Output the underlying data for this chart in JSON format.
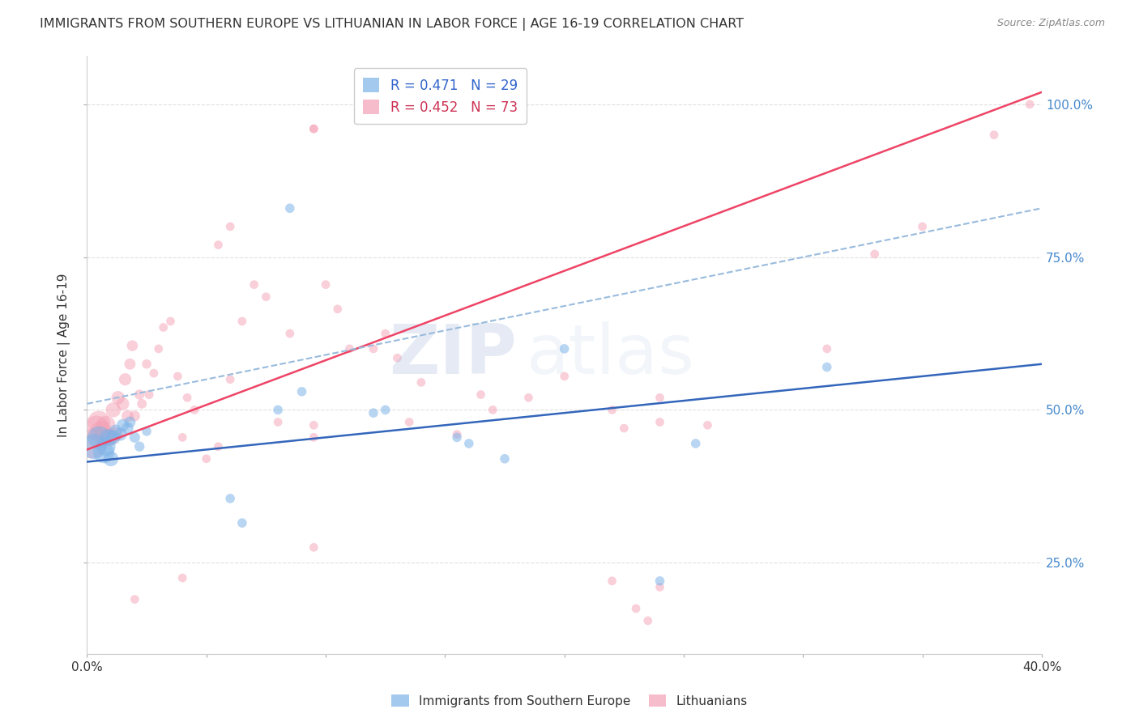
{
  "title": "IMMIGRANTS FROM SOUTHERN EUROPE VS LITHUANIAN IN LABOR FORCE | AGE 16-19 CORRELATION CHART",
  "source": "Source: ZipAtlas.com",
  "ylabel": "In Labor Force | Age 16-19",
  "xlim": [
    0.0,
    0.4
  ],
  "ylim": [
    0.1,
    1.08
  ],
  "legend_entry1": "R = 0.471   N = 29",
  "legend_entry2": "R = 0.452   N = 73",
  "watermark": "ZIPatlas",
  "blue_color": "#7EB3E8",
  "pink_color": "#F4A0B5",
  "blue_line_color": "#3366BB",
  "pink_line_color": "#EE4466",
  "dashed_line_color": "#99BBDD",
  "background_color": "#FFFFFF",
  "grid_color": "#DDDDDD",
  "blue_scatter_x": [
    0.003,
    0.005,
    0.007,
    0.008,
    0.009,
    0.01,
    0.011,
    0.012,
    0.014,
    0.015,
    0.017,
    0.018,
    0.02,
    0.022,
    0.025,
    0.06,
    0.065,
    0.08,
    0.085,
    0.09,
    0.12,
    0.125,
    0.155,
    0.16,
    0.175,
    0.2,
    0.24,
    0.255,
    0.31
  ],
  "blue_scatter_y": [
    0.44,
    0.455,
    0.43,
    0.44,
    0.455,
    0.42,
    0.455,
    0.465,
    0.46,
    0.475,
    0.47,
    0.48,
    0.455,
    0.44,
    0.465,
    0.355,
    0.315,
    0.5,
    0.83,
    0.53,
    0.495,
    0.5,
    0.455,
    0.445,
    0.42,
    0.6,
    0.22,
    0.445,
    0.57
  ],
  "blue_scatter_sizes": [
    500,
    400,
    350,
    280,
    220,
    180,
    160,
    140,
    130,
    120,
    110,
    100,
    90,
    80,
    70,
    70,
    70,
    70,
    70,
    70,
    70,
    70,
    70,
    70,
    70,
    70,
    70,
    70,
    70
  ],
  "pink_scatter_x": [
    0.002,
    0.004,
    0.005,
    0.006,
    0.007,
    0.008,
    0.009,
    0.01,
    0.011,
    0.012,
    0.013,
    0.015,
    0.016,
    0.017,
    0.018,
    0.019,
    0.02,
    0.022,
    0.023,
    0.025,
    0.026,
    0.028,
    0.03,
    0.032,
    0.035,
    0.038,
    0.04,
    0.042,
    0.045,
    0.05,
    0.055,
    0.06,
    0.065,
    0.07,
    0.075,
    0.08,
    0.085,
    0.095,
    0.1,
    0.105,
    0.11,
    0.12,
    0.125,
    0.13,
    0.135,
    0.14,
    0.155,
    0.165,
    0.17,
    0.185,
    0.2,
    0.22,
    0.24,
    0.06,
    0.055,
    0.095,
    0.095,
    0.02,
    0.04,
    0.095,
    0.095,
    0.225,
    0.24,
    0.26,
    0.31,
    0.33,
    0.35,
    0.38,
    0.395,
    0.22,
    0.24,
    0.235,
    0.23
  ],
  "pink_scatter_y": [
    0.445,
    0.47,
    0.48,
    0.465,
    0.455,
    0.475,
    0.455,
    0.455,
    0.5,
    0.46,
    0.52,
    0.51,
    0.55,
    0.49,
    0.575,
    0.605,
    0.49,
    0.525,
    0.51,
    0.575,
    0.525,
    0.56,
    0.6,
    0.635,
    0.645,
    0.555,
    0.455,
    0.52,
    0.5,
    0.42,
    0.44,
    0.55,
    0.645,
    0.705,
    0.685,
    0.48,
    0.625,
    0.475,
    0.705,
    0.665,
    0.6,
    0.6,
    0.625,
    0.585,
    0.48,
    0.545,
    0.46,
    0.525,
    0.5,
    0.52,
    0.555,
    0.5,
    0.52,
    0.8,
    0.77,
    0.275,
    0.455,
    0.19,
    0.225,
    0.96,
    0.96,
    0.47,
    0.48,
    0.475,
    0.6,
    0.755,
    0.8,
    0.95,
    1.0,
    0.22,
    0.21,
    0.155,
    0.175
  ],
  "pink_scatter_sizes": [
    700,
    500,
    400,
    350,
    300,
    280,
    240,
    200,
    180,
    160,
    140,
    130,
    120,
    110,
    100,
    95,
    90,
    80,
    75,
    70,
    65,
    60,
    60,
    60,
    60,
    60,
    60,
    60,
    60,
    60,
    60,
    60,
    60,
    60,
    60,
    60,
    60,
    60,
    60,
    60,
    60,
    60,
    60,
    60,
    60,
    60,
    60,
    60,
    60,
    60,
    60,
    60,
    60,
    60,
    60,
    60,
    60,
    60,
    60,
    60,
    60,
    60,
    60,
    60,
    60,
    60,
    60,
    60,
    60,
    60,
    60,
    60,
    60
  ],
  "blue_line": {
    "x0": 0.0,
    "x1": 0.4,
    "y0": 0.415,
    "y1": 0.575
  },
  "pink_line": {
    "x0": 0.0,
    "x1": 0.4,
    "y0": 0.435,
    "y1": 1.02
  },
  "dashed_line": {
    "x0": 0.0,
    "x1": 0.4,
    "y0": 0.51,
    "y1": 0.83
  }
}
